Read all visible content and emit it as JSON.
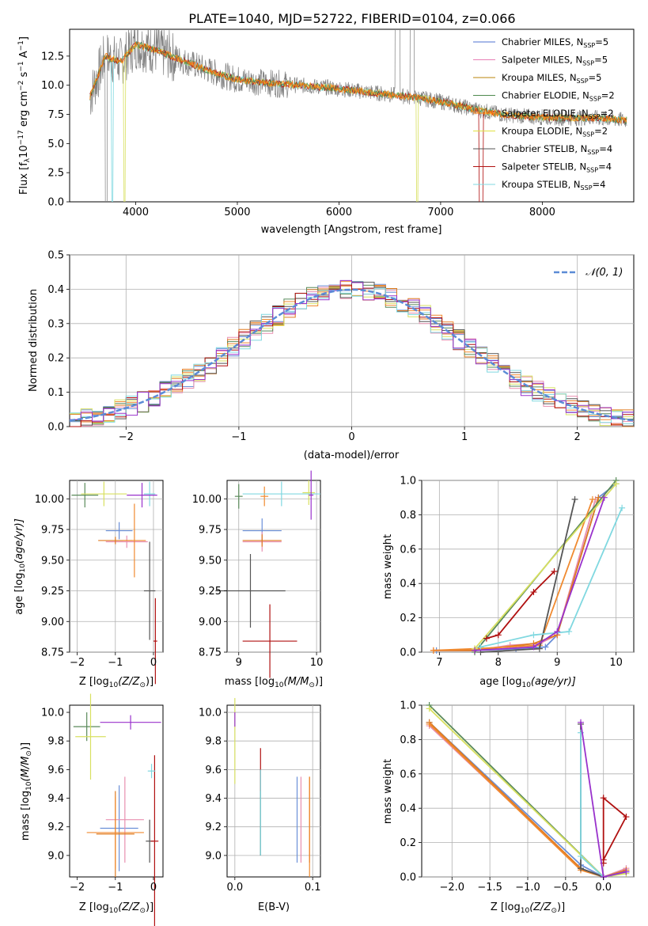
{
  "figure": {
    "title": "PLATE=1040, MJD=52722, FIBERID=0104, z=0.066"
  },
  "legend_entries": [
    {
      "label": "Chabrier MILES, N",
      "sub": "SSP",
      "suffix": "=5",
      "color": "#4c72d0"
    },
    {
      "label": "Salpeter MILES, N",
      "sub": "SSP",
      "suffix": "=5",
      "color": "#e87fb6"
    },
    {
      "label": "Kroupa MILES, N",
      "sub": "SSP",
      "suffix": "=5",
      "color": "#b8860b"
    },
    {
      "label": "Chabrier ELODIE, N",
      "sub": "SSP",
      "suffix": "=2",
      "color": "#4e8a4e"
    },
    {
      "label": "Salpeter ELODIE, N",
      "sub": "SSP",
      "suffix": "=2",
      "color": "#ff7f0e"
    },
    {
      "label": "Kroupa ELODIE, N",
      "sub": "SSP",
      "suffix": "=2",
      "color": "#e0e040"
    },
    {
      "label": "Chabrier STELIB, N",
      "sub": "SSP",
      "suffix": "=4",
      "color": "#555555"
    },
    {
      "label": "Salpeter STELIB, N",
      "sub": "SSP",
      "suffix": "=4",
      "color": "#b01010"
    },
    {
      "label": "Kroupa STELIB, N",
      "sub": "SSP",
      "suffix": "=4",
      "color": "#80d8e0"
    }
  ],
  "panel_spectrum": {
    "xlabel": "wavelength [Angstrom, rest frame]",
    "ylabel": "Flux [f",
    "ylabel_rest": "10",
    "ylabel_exp": "−17",
    "ylabel_unit": " erg cm",
    "ylabel_unit_exp": "−2",
    "ylabel_unit2": " s",
    "ylabel_unit2_exp": "−1",
    "ylabel_unit3": " A",
    "ylabel_unit3_exp": "−1",
    "ylabel_end": "]",
    "xticks": [
      "4000",
      "5000",
      "6000",
      "7000",
      "8000"
    ],
    "yticks": [
      "0.0",
      "2.5",
      "5.0",
      "7.5",
      "10.0",
      "12.5"
    ]
  },
  "panel_residuals": {
    "xlabel": "(data-model)/error",
    "ylabel": "Normed distribution",
    "xticks": [
      "−2",
      "−1",
      "0",
      "1",
      "2"
    ],
    "yticks": [
      "0.0",
      "0.1",
      "0.2",
      "0.3",
      "0.4",
      "0.5"
    ],
    "legend_label": "𝒩(0, 1)"
  },
  "panel_labels": {
    "age_ylabel": "age  [log",
    "age_ylabel_sub": "10",
    "age_ylabel_end": "(age/yr)]",
    "z_xlabel": "Z [log",
    "z_xlabel_sub": "10",
    "z_xlabel_end": "(Z/Z",
    "z_xlabel_sun": "⊙",
    "z_xlabel_close": ")]",
    "mass_label": "mass [log",
    "mass_label_sub": "10",
    "mass_label_end": "(M/M",
    "mass_label_sun": "⊙",
    "mass_label_close": ")]",
    "ebv_xlabel": "E(B-V)",
    "massweight_ylabel": "mass weight",
    "age_xlabel": "age  [log",
    "age_xlabel_sub": "10",
    "age_xlabel_end": "(age/yr)]",
    "age_yticks": [
      "8.75",
      "9.00",
      "9.25",
      "9.50",
      "9.75",
      "10.00"
    ],
    "z_xticks_small": [
      "−2",
      "−1",
      "0"
    ],
    "mass_xticks": [
      "9",
      "10"
    ],
    "mw_yticks": [
      "0.0",
      "0.2",
      "0.4",
      "0.6",
      "0.8",
      "1.0"
    ],
    "age_xticks": [
      "7",
      "8",
      "9",
      "10"
    ],
    "mass_yticks": [
      "9.0",
      "9.2",
      "9.4",
      "9.6",
      "9.8",
      "10.0"
    ],
    "ebv_xticks": [
      "0.0",
      "0.1"
    ],
    "z_xticks_big": [
      "−2.0",
      "−1.5",
      "−1.0",
      "−0.5",
      "0.0"
    ]
  },
  "chart_data": [
    {
      "type": "line",
      "id": "spectrum",
      "title": "PLATE=1040, MJD=52722, FIBERID=0104, z=0.066",
      "xlim": [
        3350,
        8900
      ],
      "ylim": [
        0,
        14.8
      ],
      "grid": false,
      "legend_position": "upper-right",
      "observed_trend": {
        "x": [
          3550,
          3700,
          3850,
          4000,
          4200,
          4500,
          4800,
          5000,
          5300,
          5600,
          5900,
          6200,
          6500,
          6800,
          7000,
          7300,
          7600,
          7900,
          8200,
          8500,
          8800
        ],
        "y": [
          9.0,
          12.5,
          12.0,
          13.5,
          13.0,
          12.0,
          11.0,
          10.5,
          10.2,
          10.0,
          9.8,
          9.5,
          9.2,
          8.9,
          8.6,
          8.0,
          7.5,
          7.3,
          7.2,
          7.2,
          7.0
        ]
      }
    },
    {
      "type": "line",
      "id": "residual_distribution",
      "xlim": [
        -2.5,
        2.5
      ],
      "ylim": [
        0,
        0.5
      ],
      "grid": true,
      "legend_position": "upper-right",
      "reference": {
        "name": "𝒩(0, 1)",
        "mean": 0,
        "sigma": 1
      }
    },
    {
      "type": "scatter",
      "id": "age_vs_Z",
      "xlim": [
        -2.2,
        0.25
      ],
      "ylim": [
        8.75,
        10.15
      ],
      "grid": true,
      "points": [
        {
          "series": "Chabrier MILES",
          "x": -0.9,
          "xerr": 0.35,
          "y": 9.74,
          "yerr": 0.07
        },
        {
          "series": "Salpeter MILES",
          "x": -0.7,
          "xerr": 0.55,
          "y": 9.65,
          "yerr": 0.05
        },
        {
          "series": "Kroupa MILES",
          "x": -1.0,
          "xerr": 0.45,
          "y": 9.66,
          "yerr": 0.03
        },
        {
          "series": "Chabrier ELODIE",
          "x": -1.8,
          "xerr": 0.35,
          "y": 10.03,
          "yerr": 0.1
        },
        {
          "series": "Salpeter ELODIE",
          "x": -0.5,
          "xerr": 0.3,
          "y": 9.66,
          "yerr": 0.3
        },
        {
          "series": "Kroupa ELODIE",
          "x": -1.3,
          "xerr": 0.6,
          "y": 10.04,
          "yerr": 0.1
        },
        {
          "series": "Chabrier STELIB",
          "x": -0.1,
          "xerr": 0.15,
          "y": 9.25,
          "yerr": 0.4
        },
        {
          "series": "Salpeter STELIB",
          "x": 0.05,
          "xerr": 0.05,
          "y": 8.84,
          "yerr": 0.35
        },
        {
          "series": "Kroupa STELIB",
          "x": -0.1,
          "xerr": 0.15,
          "y": 10.04,
          "yerr": 0.1
        },
        {
          "series": "Purple",
          "x": -0.3,
          "xerr": 0.4,
          "y": 10.03,
          "yerr": 0.1
        }
      ]
    },
    {
      "type": "scatter",
      "id": "age_vs_mass",
      "xlim": [
        8.85,
        10.05
      ],
      "ylim": [
        8.75,
        10.15
      ],
      "grid": true,
      "points": [
        {
          "series": "Chabrier MILES",
          "x": 9.3,
          "xerr": 0.25,
          "y": 9.74,
          "yerr": 0.1
        },
        {
          "series": "Salpeter MILES",
          "x": 9.3,
          "xerr": 0.25,
          "y": 9.65,
          "yerr": 0.08
        },
        {
          "series": "Kroupa MILES",
          "x": 9.3,
          "xerr": 0.25,
          "y": 9.66,
          "yerr": 0.05
        },
        {
          "series": "Chabrier ELODIE",
          "x": 9.0,
          "xerr": 0.05,
          "y": 10.02,
          "yerr": 0.1
        },
        {
          "series": "Salpeter ELODIE",
          "x": 9.33,
          "xerr": 0.05,
          "y": 10.02,
          "yerr": 0.08
        },
        {
          "series": "Kroupa ELODIE",
          "x": 9.9,
          "xerr": 0.08,
          "y": 10.05,
          "yerr": 0.1
        },
        {
          "series": "Chabrier STELIB",
          "x": 9.15,
          "xerr": 0.45,
          "y": 9.25,
          "yerr": 0.3
        },
        {
          "series": "Salpeter STELIB",
          "x": 9.4,
          "xerr": 0.35,
          "y": 8.84,
          "yerr": 0.3
        },
        {
          "series": "Kroupa STELIB",
          "x": 9.55,
          "xerr": 0.5,
          "y": 10.04,
          "yerr": 0.1
        },
        {
          "series": "Purple",
          "x": 9.93,
          "xerr": 0.03,
          "y": 10.03,
          "yerr": 0.2
        }
      ]
    },
    {
      "type": "line",
      "id": "mass_weight_vs_age",
      "xlim": [
        6.7,
        10.3
      ],
      "ylim": [
        0,
        1.0
      ],
      "grid": true,
      "series": [
        {
          "name": "Chabrier MILES",
          "x": [
            6.95,
            7.6,
            8.3,
            8.8,
            9.0,
            9.7,
            10.0
          ],
          "y": [
            0.01,
            0.01,
            0.02,
            0.03,
            0.1,
            0.9,
            0.98
          ]
        },
        {
          "name": "Salpeter MILES",
          "x": [
            6.9,
            7.6,
            8.2,
            8.7,
            9.0,
            9.65
          ],
          "y": [
            0.01,
            0.01,
            0.04,
            0.05,
            0.1,
            0.89
          ]
        },
        {
          "name": "Kroupa MILES",
          "x": [
            6.9,
            7.6,
            8.6,
            9.0,
            9.7
          ],
          "y": [
            0.01,
            0.01,
            0.05,
            0.1,
            0.9
          ]
        },
        {
          "name": "Chabrier ELODIE",
          "x": [
            7.6,
            10.0
          ],
          "y": [
            0.0,
            1.0
          ]
        },
        {
          "name": "Salpeter ELODIE",
          "x": [
            6.9,
            7.6,
            8.7,
            9.6
          ],
          "y": [
            0.01,
            0.02,
            0.04,
            0.89
          ]
        },
        {
          "name": "Kroupa ELODIE",
          "x": [
            7.6,
            10.0
          ],
          "y": [
            0.02,
            0.98
          ]
        },
        {
          "name": "Chabrier STELIB",
          "x": [
            7.7,
            8.7,
            9.3
          ],
          "y": [
            0.0,
            0.02,
            0.89
          ]
        },
        {
          "name": "Salpeter STELIB",
          "x": [
            7.8,
            8.0,
            8.6,
            8.95
          ],
          "y": [
            0.08,
            0.1,
            0.35,
            0.47
          ]
        },
        {
          "name": "Kroupa STELIB",
          "x": [
            7.7,
            8.6,
            9.2,
            10.1
          ],
          "y": [
            0.03,
            0.1,
            0.12,
            0.84
          ]
        },
        {
          "name": "Purple",
          "x": [
            7.6,
            8.6,
            9.0,
            9.8
          ],
          "y": [
            0.01,
            0.03,
            0.12,
            0.9
          ]
        }
      ]
    },
    {
      "type": "scatter",
      "id": "mass_vs_Z",
      "xlim": [
        -2.2,
        0.25
      ],
      "ylim": [
        8.85,
        10.05
      ],
      "grid": false,
      "points": [
        {
          "series": "Chabrier MILES",
          "x": -0.9,
          "xerr": 0.5,
          "y": 9.19,
          "yerr": 0.3
        },
        {
          "series": "Salpeter MILES",
          "x": -0.75,
          "xerr": 0.5,
          "y": 9.25,
          "yerr": 0.3
        },
        {
          "series": "Kroupa MILES",
          "x": -1.0,
          "xerr": 0.5,
          "y": 9.15,
          "yerr": 0.3
        },
        {
          "series": "Chabrier ELODIE",
          "x": -1.75,
          "xerr": 0.35,
          "y": 9.9,
          "yerr": 0.1
        },
        {
          "series": "Salpeter ELODIE",
          "x": -1.0,
          "xerr": 0.75,
          "y": 9.16,
          "yerr": 0.25
        },
        {
          "series": "Kroupa ELODIE",
          "x": -1.65,
          "xerr": 0.4,
          "y": 9.83,
          "yerr": 0.3
        },
        {
          "series": "Chabrier STELIB",
          "x": -0.1,
          "xerr": 0.1,
          "y": 9.1,
          "yerr": 0.15
        },
        {
          "series": "Salpeter STELIB",
          "x": 0.03,
          "xerr": 0.1,
          "y": 9.1,
          "yerr": 0.6
        },
        {
          "series": "Kroupa STELIB",
          "x": -0.05,
          "xerr": 0.1,
          "y": 9.59,
          "yerr": 0.05
        },
        {
          "series": "Purple",
          "x": -0.6,
          "xerr": 0.8,
          "y": 9.93,
          "yerr": 0.05
        }
      ]
    },
    {
      "type": "scatter",
      "id": "mass_vs_ebv",
      "xlim": [
        -0.01,
        0.11
      ],
      "ylim": [
        8.85,
        10.05
      ],
      "grid": true,
      "points": [
        {
          "series": "Chabrier MILES",
          "x": 0.08,
          "y": 9.25,
          "yerr": 0.3
        },
        {
          "series": "Salpeter MILES",
          "x": 0.085,
          "y": 9.25,
          "yerr": 0.3
        },
        {
          "series": "Kroupa MILES",
          "x": 0.096,
          "y": 9.25,
          "yerr": 0.3
        },
        {
          "series": "Chabrier ELODIE",
          "x": 0.033,
          "y": 9.3,
          "yerr": 0.3
        },
        {
          "series": "Salpeter ELODIE",
          "x": 0.096,
          "y": 9.2,
          "yerr": 0.35
        },
        {
          "series": "Kroupa ELODIE",
          "x": 0.0,
          "y": 9.8,
          "yerr": 0.3
        },
        {
          "series": "Chabrier STELIB",
          "x": 0.033,
          "y": 9.3,
          "yerr": 0.3
        },
        {
          "series": "Salpeter STELIB",
          "x": 0.033,
          "y": 9.6,
          "yerr": 0.15
        },
        {
          "series": "Kroupa STELIB",
          "x": 0.033,
          "y": 9.3,
          "yerr": 0.3
        },
        {
          "series": "Purple",
          "x": 0.0,
          "y": 9.95,
          "yerr": 0.05
        }
      ]
    },
    {
      "type": "line",
      "id": "mass_weight_vs_Z",
      "xlim": [
        -2.4,
        0.4
      ],
      "ylim": [
        0,
        1.0
      ],
      "grid": true,
      "series": [
        {
          "name": "Chabrier MILES",
          "x": [
            -2.3,
            -0.3,
            0.0,
            0.3
          ],
          "y": [
            0.9,
            0.07,
            0.0,
            0.03
          ]
        },
        {
          "name": "Salpeter MILES",
          "x": [
            -2.3,
            -0.3,
            0.0,
            0.3
          ],
          "y": [
            0.88,
            0.05,
            0.0,
            0.05
          ]
        },
        {
          "name": "Kroupa MILES",
          "x": [
            -2.3,
            -0.3,
            0.0,
            0.3
          ],
          "y": [
            0.9,
            0.05,
            0.0,
            0.04
          ]
        },
        {
          "name": "Chabrier ELODIE",
          "x": [
            -2.3,
            0.0
          ],
          "y": [
            1.0,
            0.0
          ]
        },
        {
          "name": "Salpeter ELODIE",
          "x": [
            -2.3,
            -0.3,
            0.0
          ],
          "y": [
            0.89,
            0.04,
            0.0
          ]
        },
        {
          "name": "Kroupa ELODIE",
          "x": [
            -2.3,
            0.0,
            0.3
          ],
          "y": [
            0.98,
            0.0,
            0.02
          ]
        },
        {
          "name": "Chabrier STELIB",
          "x": [
            -0.3,
            -0.3,
            0.0,
            0.3
          ],
          "y": [
            0.89,
            0.05,
            0.0,
            0.03
          ]
        },
        {
          "name": "Salpeter STELIB",
          "x": [
            0.0,
            0.0,
            0.3,
            0.0
          ],
          "y": [
            0.08,
            0.46,
            0.35,
            0.1
          ]
        },
        {
          "name": "Kroupa STELIB",
          "x": [
            -0.3,
            -0.3,
            0.0,
            0.3
          ],
          "y": [
            0.84,
            0.12,
            0.0,
            0.03
          ]
        },
        {
          "name": "Purple",
          "x": [
            -0.3,
            0.0,
            0.3
          ],
          "y": [
            0.9,
            0.0,
            0.03
          ]
        }
      ]
    }
  ],
  "series_colors": {
    "Chabrier MILES": "#6a8fd8",
    "Salpeter MILES": "#e88fb0",
    "Kroupa MILES": "#e07b20",
    "Chabrier ELODIE": "#5a8a5a",
    "Salpeter ELODIE": "#f08a30",
    "Kroupa ELODIE": "#d8e060",
    "Chabrier STELIB": "#555555",
    "Salpeter STELIB": "#b01010",
    "Kroupa STELIB": "#80d8e0",
    "Purple": "#9932cc"
  }
}
